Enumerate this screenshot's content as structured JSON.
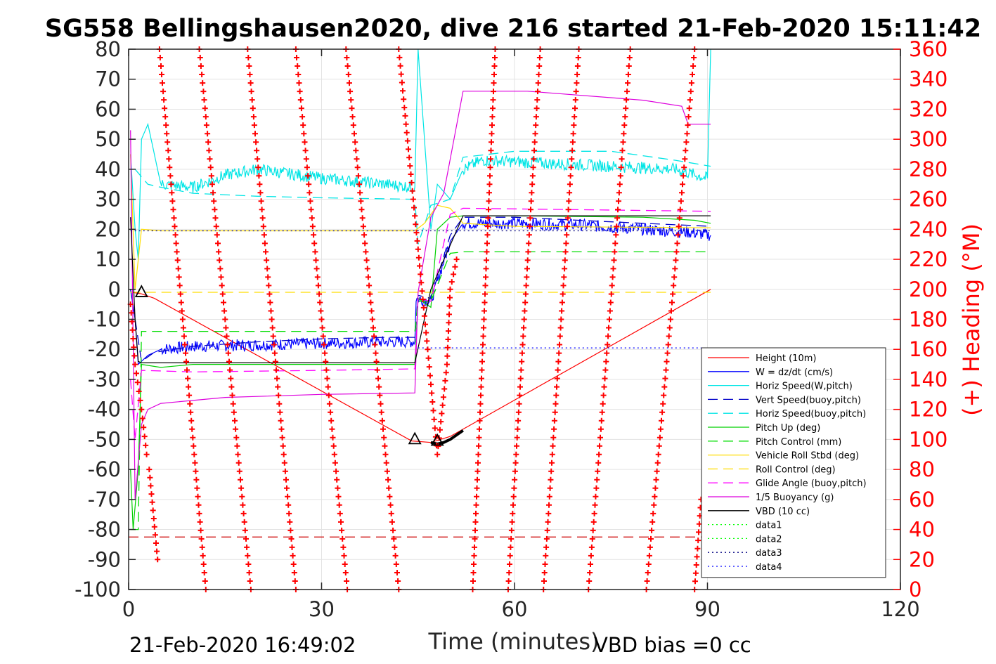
{
  "chart_data": {
    "type": "line",
    "title": "SG558 Bellingshausen2020, dive 216 started 21-Feb-2020 15:11:42",
    "xlabel": "Time (minutes)",
    "ylabel_right": "(+) Heading (°M)",
    "footer_left": "21-Feb-2020 16:49:02",
    "footer_right": "VBD bias =0 cc",
    "xlim": [
      0,
      120
    ],
    "ylim": [
      -100,
      80
    ],
    "ylim_right": [
      0,
      360
    ],
    "x_ticks": [
      "0",
      "30",
      "60",
      "90",
      "120"
    ],
    "y_ticks": [
      "80",
      "70",
      "60",
      "50",
      "40",
      "30",
      "20",
      "10",
      "0",
      "-10",
      "-20",
      "-30",
      "-40",
      "-50",
      "-60",
      "-70",
      "-80",
      "-90",
      "-100"
    ],
    "y_ticks_right": [
      "360",
      "340",
      "320",
      "300",
      "280",
      "260",
      "240",
      "220",
      "200",
      "180",
      "160",
      "140",
      "120",
      "100",
      "80",
      "60",
      "40",
      "20",
      "0"
    ],
    "grid": true,
    "legend_position": "bottom-right",
    "series": [
      {
        "name": "Height (10m)",
        "color": "#ff0000",
        "style": "solid",
        "points": [
          [
            0.5,
            -1
          ],
          [
            2,
            -1.5
          ],
          [
            4,
            -3
          ],
          [
            44,
            -50.5
          ],
          [
            47,
            -51
          ],
          [
            50,
            -49
          ],
          [
            90.5,
            0
          ]
        ]
      },
      {
        "name": "W = dz/dt (cm/s)",
        "color": "#0000ff",
        "style": "solid",
        "noisy": true,
        "points": [
          [
            0.3,
            0
          ],
          [
            1,
            -10
          ],
          [
            1.5,
            -25
          ],
          [
            2,
            -24
          ],
          [
            3,
            -22
          ],
          [
            5,
            -20
          ],
          [
            10,
            -19
          ],
          [
            20,
            -18.5
          ],
          [
            30,
            -18
          ],
          [
            40,
            -17.5
          ],
          [
            44.5,
            -17.5
          ],
          [
            44.7,
            -3
          ],
          [
            47,
            -4
          ],
          [
            50,
            16
          ],
          [
            52,
            22
          ],
          [
            60,
            22
          ],
          [
            70,
            21.5
          ],
          [
            80,
            20
          ],
          [
            87,
            19
          ],
          [
            90.5,
            18
          ]
        ]
      },
      {
        "name": "Horiz Speed(W,pitch)",
        "color": "#00e5e5",
        "style": "solid",
        "noisy": true,
        "points": [
          [
            0.3,
            45
          ],
          [
            1,
            20
          ],
          [
            1.5,
            10
          ],
          [
            2,
            50
          ],
          [
            3,
            55
          ],
          [
            4,
            45
          ],
          [
            5,
            35
          ],
          [
            10,
            34
          ],
          [
            15,
            38
          ],
          [
            20,
            40
          ],
          [
            30,
            37
          ],
          [
            40,
            35
          ],
          [
            44.5,
            34
          ],
          [
            45,
            80
          ],
          [
            46,
            50
          ],
          [
            47,
            20
          ],
          [
            48,
            35
          ],
          [
            50,
            30
          ],
          [
            52,
            40
          ],
          [
            55,
            43
          ],
          [
            65,
            42
          ],
          [
            75,
            41
          ],
          [
            85,
            40
          ],
          [
            90,
            37
          ],
          [
            90.5,
            80
          ]
        ]
      },
      {
        "name": "Vert Speed(buoy,pitch)",
        "color": "#0000c8",
        "style": "dashed",
        "points": [
          [
            0.3,
            0
          ],
          [
            2,
            -24
          ],
          [
            4,
            -21
          ],
          [
            10,
            -19
          ],
          [
            20,
            -17.5
          ],
          [
            30,
            -16.5
          ],
          [
            40,
            -16
          ],
          [
            44.5,
            -16
          ],
          [
            45,
            -2
          ],
          [
            47,
            -3
          ],
          [
            50,
            18
          ],
          [
            52,
            24
          ],
          [
            60,
            24
          ],
          [
            80,
            22
          ],
          [
            90.5,
            21
          ]
        ]
      },
      {
        "name": "Horiz Speed(buoy,pitch)",
        "color": "#00e5e5",
        "style": "dashed",
        "points": [
          [
            1,
            40
          ],
          [
            3,
            35
          ],
          [
            5,
            34
          ],
          [
            10,
            32
          ],
          [
            20,
            31
          ],
          [
            30,
            30.5
          ],
          [
            44.5,
            30
          ],
          [
            45,
            15
          ],
          [
            47,
            28
          ],
          [
            50,
            30
          ],
          [
            52,
            44
          ],
          [
            60,
            46
          ],
          [
            75,
            46
          ],
          [
            85,
            43
          ],
          [
            90.5,
            41
          ]
        ]
      },
      {
        "name": "Pitch Up (deg)",
        "color": "#00d000",
        "style": "solid",
        "points": [
          [
            0.3,
            -60
          ],
          [
            0.7,
            -80
          ],
          [
            1.5,
            -60
          ],
          [
            2,
            -25
          ],
          [
            5,
            -26
          ],
          [
            10,
            -25
          ],
          [
            20,
            -25
          ],
          [
            30,
            -25
          ],
          [
            44.5,
            -25
          ],
          [
            45,
            -3
          ],
          [
            47,
            -6
          ],
          [
            48,
            20
          ],
          [
            50,
            24
          ],
          [
            52,
            24.5
          ],
          [
            60,
            24.5
          ],
          [
            80,
            24
          ],
          [
            88,
            23
          ],
          [
            90.5,
            22
          ]
        ]
      },
      {
        "name": "Pitch Control (mm)",
        "color": "#00dd00",
        "style": "dashed",
        "points": [
          [
            0.3,
            -80
          ],
          [
            1.5,
            -80
          ],
          [
            2,
            -14
          ],
          [
            44.5,
            -14
          ],
          [
            45,
            -4
          ],
          [
            47,
            -4
          ],
          [
            50,
            12
          ],
          [
            52,
            12.5
          ],
          [
            90.5,
            12.5
          ]
        ]
      },
      {
        "name": "Vehicle Roll Stbd (deg)",
        "color": "#ffdd00",
        "style": "solid",
        "points": [
          [
            0.3,
            45
          ],
          [
            1,
            0
          ],
          [
            2,
            20
          ],
          [
            5,
            19.5
          ],
          [
            20,
            19.5
          ],
          [
            44.5,
            19.5
          ],
          [
            46,
            22
          ],
          [
            48,
            28
          ],
          [
            50,
            27
          ],
          [
            52,
            22
          ],
          [
            60,
            21
          ],
          [
            90.5,
            20.5
          ]
        ]
      },
      {
        "name": "Roll Control (deg)",
        "color": "#ffdd00",
        "style": "dashed",
        "points": [
          [
            0.3,
            -1
          ],
          [
            90.5,
            -1
          ]
        ]
      },
      {
        "name": "Glide Angle (buoy,pitch)",
        "color": "#ff00ff",
        "style": "dashed",
        "points": [
          [
            0.3,
            -30
          ],
          [
            1,
            -50
          ],
          [
            2,
            -27
          ],
          [
            10,
            -27.5
          ],
          [
            30,
            -27
          ],
          [
            44.5,
            -26.5
          ],
          [
            45,
            -3
          ],
          [
            47,
            -4
          ],
          [
            50,
            25
          ],
          [
            52,
            27
          ],
          [
            90.5,
            26
          ]
        ]
      },
      {
        "name": "1/5 Buoyancy (g)",
        "color": "#dd00dd",
        "style": "solid",
        "points": [
          [
            0.3,
            53
          ],
          [
            1,
            -70
          ],
          [
            2,
            -45
          ],
          [
            3,
            -40
          ],
          [
            5,
            -38
          ],
          [
            15,
            -36
          ],
          [
            30,
            -35
          ],
          [
            44.5,
            -34.5
          ],
          [
            45,
            -1
          ],
          [
            47,
            24
          ],
          [
            49,
            32
          ],
          [
            52,
            66
          ],
          [
            62,
            66
          ],
          [
            80,
            63
          ],
          [
            86,
            61
          ],
          [
            87,
            55
          ],
          [
            90.5,
            55
          ]
        ]
      },
      {
        "name": "VBD (10 cc)",
        "color": "#000000",
        "style": "solid",
        "points": [
          [
            0.3,
            24
          ],
          [
            1,
            -10
          ],
          [
            1.5,
            -24
          ],
          [
            2,
            -24.5
          ],
          [
            20,
            -24.5
          ],
          [
            44.5,
            -24.5
          ],
          [
            47,
            0
          ],
          [
            52,
            24.5
          ],
          [
            90.5,
            24.5
          ]
        ]
      },
      {
        "name": "data1",
        "color": "#00ff00",
        "style": "dotted",
        "points": []
      },
      {
        "name": "data2",
        "color": "#00ff00",
        "style": "dotted",
        "points": []
      },
      {
        "name": "data3",
        "color": "#000080",
        "style": "dotted",
        "points": [
          [
            0.3,
            19.5
          ],
          [
            44.5,
            19.5
          ],
          [
            47,
            19.5
          ],
          [
            90.5,
            19.5
          ]
        ]
      },
      {
        "name": "data4",
        "color": "#0000ff",
        "style": "dotted",
        "points": [
          [
            45,
            -19.5
          ],
          [
            90.5,
            -19.5
          ]
        ]
      }
    ],
    "reference_lines": [
      {
        "color": "#cc0000",
        "style": "dashed",
        "y": -82.5,
        "x": [
          0,
          90.5
        ]
      }
    ],
    "apogee_track": {
      "color": "#000000",
      "points": [
        [
          47,
          -51
        ],
        [
          48,
          -51.5
        ],
        [
          49,
          -51
        ],
        [
          50,
          -50
        ],
        [
          52,
          -47
        ]
      ]
    },
    "markers": [
      {
        "shape": "triangle",
        "x": 2,
        "y": -1
      },
      {
        "shape": "triangle",
        "x": 44.5,
        "y": -50
      },
      {
        "shape": "triangle",
        "x": 48,
        "y": -50.5
      }
    ],
    "heading_series": {
      "axis": "right",
      "color": "#ff0000",
      "marker": "+",
      "ramps": [
        [
          [
            0.3,
            190
          ],
          [
            1,
            150
          ],
          [
            2,
            120
          ],
          [
            2.8,
            90
          ]
        ],
        [
          [
            3.2,
            80
          ],
          [
            4.5,
            20
          ]
        ],
        [
          [
            4.8,
            360
          ],
          [
            12,
            0
          ]
        ],
        [
          [
            11,
            360
          ],
          [
            19,
            0
          ]
        ],
        [
          [
            18.5,
            360
          ],
          [
            26,
            0
          ]
        ],
        [
          [
            26,
            360
          ],
          [
            34,
            0
          ]
        ],
        [
          [
            33.8,
            360
          ],
          [
            42,
            0
          ]
        ],
        [
          [
            42,
            360
          ],
          [
            46.5,
            160
          ],
          [
            48,
            90
          ],
          [
            49.5,
            150
          ],
          [
            50,
            200
          ],
          [
            51,
            220
          ]
        ],
        [
          [
            53.5,
            0
          ],
          [
            57,
            360
          ]
        ],
        [
          [
            59,
            0
          ],
          [
            64,
            360
          ]
        ],
        [
          [
            64.5,
            0
          ],
          [
            70,
            360
          ]
        ],
        [
          [
            71.5,
            0
          ],
          [
            78,
            360
          ]
        ],
        [
          [
            80.5,
            0
          ],
          [
            88,
            360
          ]
        ],
        [
          [
            88,
            0
          ],
          [
            89,
            60
          ]
        ]
      ]
    }
  }
}
